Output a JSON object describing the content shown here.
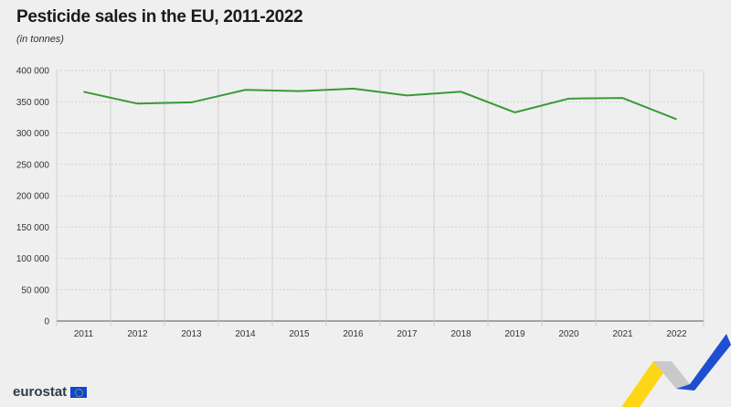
{
  "title": "Pesticide sales in the EU, 2011-2022",
  "subtitle": "(in tonnes)",
  "logo_text": "eurostat",
  "colors": {
    "line": "#3a9a35",
    "grid": "#c8c8c8",
    "background": "#efefef"
  },
  "chart_data": {
    "type": "line",
    "title": "Pesticide sales in the EU, 2011-2022",
    "subtitle": "(in tonnes)",
    "xlabel": "",
    "ylabel": "",
    "categories": [
      "2011",
      "2012",
      "2013",
      "2014",
      "2015",
      "2016",
      "2017",
      "2018",
      "2019",
      "2020",
      "2021",
      "2022"
    ],
    "series": [
      {
        "values": [
          366000,
          347000,
          349000,
          369000,
          367000,
          371000,
          360000,
          366000,
          333000,
          355000,
          356000,
          322000
        ]
      }
    ],
    "ylim": [
      0,
      400000
    ],
    "yticks": [
      0,
      50000,
      100000,
      150000,
      200000,
      250000,
      300000,
      350000,
      400000
    ],
    "ytick_labels": [
      "0",
      "50 000",
      "100 000",
      "150 000",
      "200 000",
      "250 000",
      "300 000",
      "350 000",
      "400 000"
    ],
    "grid": true,
    "legend": "none"
  }
}
